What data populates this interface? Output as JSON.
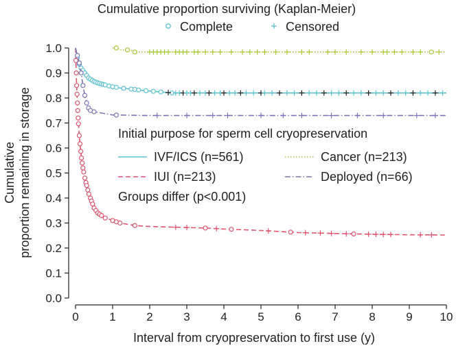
{
  "chart_data": {
    "type": "line",
    "subtype": "kaplan-meier survival curves",
    "title": "Cumulative proportion surviving (Kaplan-Meier)",
    "xlabel": "Interval from cryopreservation to first use (y)",
    "ylabel_lines": [
      "Cumulative",
      "proportion remaining in storage"
    ],
    "xlim": [
      0,
      10
    ],
    "ylim": [
      0,
      1.0
    ],
    "xticks": [
      0,
      1,
      2,
      3,
      4,
      5,
      6,
      7,
      8,
      9,
      10
    ],
    "yticks": [
      0.0,
      0.1,
      0.2,
      0.3,
      0.4,
      0.5,
      0.6,
      0.7,
      0.8,
      0.9,
      1.0
    ],
    "ytick_labels": [
      "0.0",
      "0.1",
      "0.2",
      "0.3",
      "0.4",
      "0.5",
      "0.6",
      "0.7",
      "0.8",
      "0.9",
      "1.0"
    ],
    "grid": false,
    "marker_legend": [
      {
        "symbol": "o",
        "label": "Complete"
      },
      {
        "symbol": "+",
        "label": "Censored"
      }
    ],
    "legend_title": "Initial purpose for sperm cell cryopreservation",
    "annotation": "Groups differ (p<0.001)",
    "series": [
      {
        "name": "IVF/ICS (n=561)",
        "color": "#5bc1d0",
        "dash": "solid",
        "x": [
          0,
          0.05,
          0.1,
          0.15,
          0.2,
          0.25,
          0.3,
          0.35,
          0.4,
          0.5,
          0.6,
          0.7,
          0.8,
          0.9,
          1.0,
          1.2,
          1.4,
          1.6,
          1.8,
          2.0,
          2.3,
          2.6,
          3.0,
          4.0,
          5.0,
          6.0,
          7.0,
          8.0,
          9.0,
          10.0
        ],
        "y": [
          1.0,
          0.96,
          0.935,
          0.92,
          0.91,
          0.9,
          0.89,
          0.88,
          0.875,
          0.866,
          0.86,
          0.856,
          0.852,
          0.848,
          0.845,
          0.84,
          0.837,
          0.834,
          0.83,
          0.828,
          0.824,
          0.82,
          0.82,
          0.82,
          0.82,
          0.82,
          0.82,
          0.82,
          0.82,
          0.82
        ],
        "complete_x": [
          0.05,
          0.1,
          0.15,
          0.2,
          0.25,
          0.3,
          0.35,
          0.4,
          0.45,
          0.5,
          0.55,
          0.6,
          0.65,
          0.7,
          0.75,
          0.8,
          0.9,
          1.0,
          1.1,
          1.3,
          1.5,
          1.6,
          1.7,
          1.9,
          2.1,
          2.3,
          2.6
        ],
        "censored_x": [
          2.5,
          2.7,
          2.8,
          2.9,
          3.0,
          3.1,
          3.2,
          3.35,
          3.5,
          3.6,
          3.75,
          3.9,
          4.0,
          4.15,
          4.3,
          4.45,
          4.6,
          4.8,
          5.0,
          5.1,
          5.3,
          5.5,
          5.7,
          5.9,
          6.1,
          6.3,
          6.5,
          6.7,
          6.9,
          7.1,
          7.3,
          7.5,
          7.7,
          7.9,
          8.1,
          8.3,
          8.5,
          8.7,
          8.9,
          9.1,
          9.3,
          9.5,
          9.7,
          9.9
        ]
      },
      {
        "name": "IUI (n=213)",
        "color": "#e0546d",
        "dash": "dashed",
        "x": [
          0,
          0.01,
          0.02,
          0.03,
          0.05,
          0.07,
          0.1,
          0.13,
          0.16,
          0.2,
          0.25,
          0.3,
          0.35,
          0.4,
          0.45,
          0.5,
          0.55,
          0.6,
          0.7,
          0.8,
          0.9,
          1.0,
          1.2,
          1.4,
          1.6,
          1.8,
          2.0,
          2.5,
          3.0,
          3.5,
          4.0,
          5.0,
          6.0,
          7.0,
          8.0,
          9.0,
          10.0
        ],
        "y": [
          1.0,
          0.95,
          0.9,
          0.85,
          0.78,
          0.72,
          0.65,
          0.6,
          0.56,
          0.52,
          0.48,
          0.45,
          0.42,
          0.4,
          0.38,
          0.36,
          0.35,
          0.34,
          0.33,
          0.32,
          0.316,
          0.31,
          0.3,
          0.295,
          0.29,
          0.288,
          0.286,
          0.284,
          0.282,
          0.28,
          0.276,
          0.27,
          0.262,
          0.258,
          0.255,
          0.253,
          0.252
        ],
        "complete_x": [
          0.01,
          0.02,
          0.03,
          0.04,
          0.05,
          0.06,
          0.07,
          0.08,
          0.1,
          0.12,
          0.14,
          0.16,
          0.18,
          0.2,
          0.22,
          0.25,
          0.28,
          0.3,
          0.33,
          0.36,
          0.4,
          0.43,
          0.46,
          0.5,
          0.55,
          0.6,
          0.65,
          0.7,
          0.8,
          1.0,
          1.1,
          1.2,
          1.6,
          3.5,
          4.2,
          5.8,
          7.5
        ],
        "censored_x": [
          2.7,
          3.0,
          3.8,
          5.2,
          6.2,
          6.6,
          6.9,
          7.3,
          7.9,
          8.1,
          8.3,
          8.5,
          9.3,
          9.6
        ]
      },
      {
        "name": "Cancer (n=213)",
        "color": "#a9c838",
        "dash": "dotted",
        "x": [
          1.0,
          1.1,
          1.2,
          1.5,
          1.55,
          10.0
        ],
        "y": [
          1.0,
          1.0,
          0.992,
          0.992,
          0.984,
          0.984
        ],
        "complete_x": [
          1.1,
          1.4,
          1.6,
          9.6
        ],
        "censored_x": [
          2.0,
          2.1,
          2.2,
          2.3,
          2.4,
          2.5,
          2.7,
          2.8,
          2.9,
          3.0,
          3.2,
          3.3,
          3.5,
          3.7,
          3.9,
          4.2,
          4.5,
          4.7,
          4.9,
          5.1,
          5.4,
          5.7,
          6.1,
          6.3,
          6.8,
          7.0,
          7.3,
          7.7,
          8.0,
          8.3,
          8.4,
          8.6,
          8.8,
          9.1,
          9.3,
          9.8
        ]
      },
      {
        "name": "Deployed (n=66)",
        "color": "#7a75b8",
        "dash": "dashdot",
        "x": [
          0,
          0.05,
          0.1,
          0.15,
          0.2,
          0.25,
          0.3,
          0.35,
          0.4,
          0.45,
          0.5,
          1.0,
          2.0,
          10.0
        ],
        "y": [
          1.0,
          0.97,
          0.94,
          0.9,
          0.85,
          0.81,
          0.78,
          0.76,
          0.75,
          0.745,
          0.745,
          0.732,
          0.73,
          0.73
        ],
        "complete_x": [
          0.05,
          0.1,
          0.15,
          0.2,
          0.25,
          0.3,
          0.35,
          0.4,
          0.5,
          1.1
        ],
        "censored_x": [
          2.2,
          3.0,
          3.7,
          4.1,
          5.0,
          5.6,
          6.1,
          6.9,
          7.6,
          8.3,
          9.2,
          9.7
        ]
      }
    ]
  }
}
